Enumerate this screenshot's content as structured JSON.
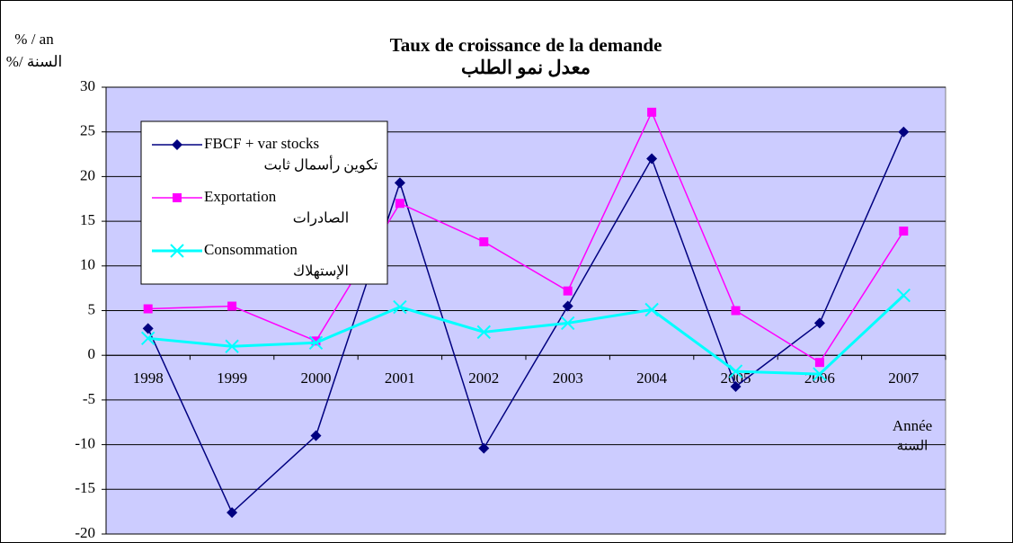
{
  "chart_data": {
    "type": "line",
    "title": "Taux de croissance de la demande",
    "subtitle": "معدل نمو الطلب",
    "y_label": [
      "% / an",
      "%/ السنة"
    ],
    "x_label": [
      "Année",
      "السنة"
    ],
    "categories": [
      "1998",
      "1999",
      "2000",
      "2001",
      "2002",
      "2003",
      "2004",
      "2005",
      "2006",
      "2007"
    ],
    "series": [
      {
        "name": "FBCF + var stocks",
        "name_ar": "تكوين رأسمال ثابت",
        "color": "#000080",
        "marker": "diamond",
        "values": [
          3,
          -17.6,
          -9,
          19.3,
          -10.4,
          5.5,
          22,
          -3.5,
          3.6,
          25
        ]
      },
      {
        "name": "Exportation",
        "name_ar": "الصادرات",
        "color": "#ff00ff",
        "marker": "square",
        "values": [
          5.2,
          5.5,
          1.6,
          17,
          12.7,
          7.2,
          27.2,
          5,
          -0.8,
          13.9
        ]
      },
      {
        "name": "Consommation",
        "name_ar": "الإستهلاك",
        "color": "#00ffff",
        "marker": "x",
        "values": [
          1.9,
          1.0,
          1.4,
          5.4,
          2.6,
          3.6,
          5.1,
          -1.8,
          -2.1,
          6.7
        ]
      }
    ],
    "ylim": [
      -20,
      30
    ],
    "yticks": [
      -20,
      -15,
      -10,
      -5,
      0,
      5,
      10,
      15,
      20,
      25,
      30
    ],
    "grid": true,
    "legend": "top-left"
  }
}
